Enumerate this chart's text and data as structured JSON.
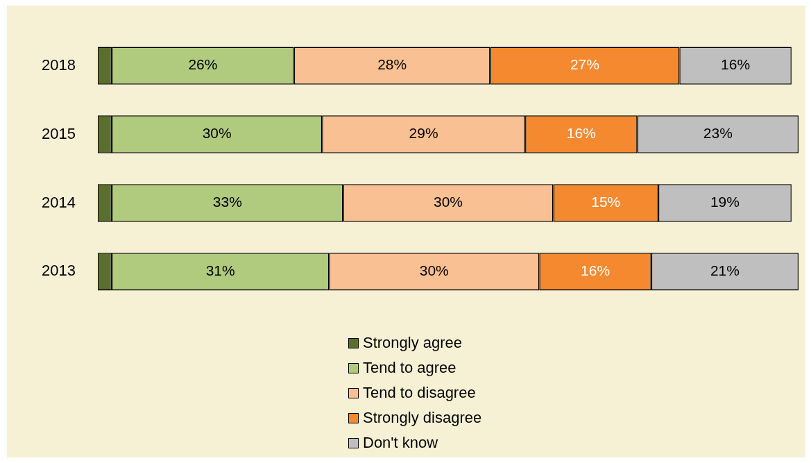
{
  "chart_data": {
    "type": "bar",
    "orientation": "horizontal",
    "stacked": true,
    "categories": [
      "2018",
      "2015",
      "2014",
      "2013"
    ],
    "xlim": [
      0,
      100
    ],
    "tick_labels": "y",
    "legend": "bottom",
    "series": [
      {
        "name": "Strongly agree",
        "color": "#5a6e2d",
        "values": [
          2,
          2,
          2,
          2
        ],
        "value_labels": [
          null,
          null,
          null,
          null
        ]
      },
      {
        "name": "Tend to agree",
        "color": "#b0ca7e",
        "values": [
          26,
          30,
          33,
          31
        ],
        "value_labels": [
          "26%",
          "30%",
          "33%",
          "31%"
        ]
      },
      {
        "name": "Tend to disagree",
        "color": "#f9c093",
        "values": [
          28,
          29,
          30,
          30
        ],
        "value_labels": [
          "28%",
          "29%",
          "30%",
          "30%"
        ]
      },
      {
        "name": "Strongly disagree",
        "color": "#f4892f",
        "values": [
          27,
          16,
          15,
          16
        ],
        "value_labels": [
          "27%",
          "16%",
          "15%",
          "16%"
        ]
      },
      {
        "name": "Don't know",
        "color": "#bfbfbf",
        "values": [
          16,
          23,
          19,
          21
        ],
        "value_labels": [
          "16%",
          "23%",
          "19%",
          "21%"
        ]
      }
    ]
  }
}
